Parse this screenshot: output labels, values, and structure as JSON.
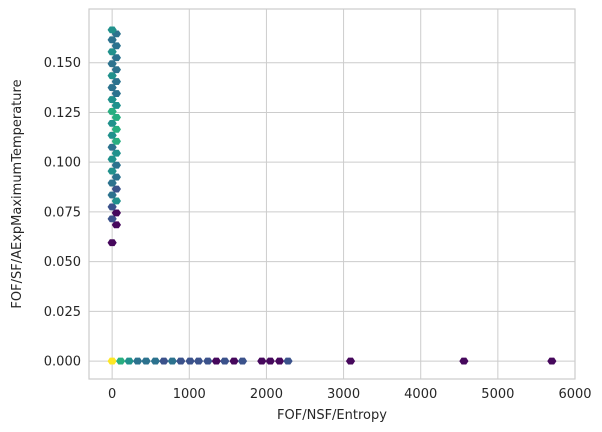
{
  "chart_data": {
    "type": "hexbin",
    "xlabel": "FOF/NSF/Entropy",
    "ylabel": "FOF/SF/AExpMaximumTemperature",
    "xlim": [
      -300,
      6000
    ],
    "ylim": [
      -0.009,
      0.177
    ],
    "xticks": [
      0,
      1000,
      2000,
      3000,
      4000,
      5000,
      6000
    ],
    "yticks": [
      0.0,
      0.025,
      0.05,
      0.075,
      0.1,
      0.125,
      0.15
    ],
    "xtick_labels": [
      "0",
      "1000",
      "2000",
      "3000",
      "4000",
      "5000",
      "6000"
    ],
    "ytick_labels": [
      "0.000",
      "0.025",
      "0.050",
      "0.075",
      "0.100",
      "0.125",
      "0.150"
    ],
    "grid": true,
    "colormap": "viridis",
    "colors": {
      "very_low": "#46085c",
      "low": "#3b528b",
      "mid": "#2c728e",
      "mid_high": "#21918c",
      "high": "#28ae80",
      "max": "#fde725"
    },
    "bins": [
      {
        "x": 0,
        "y": 0.0,
        "level": "max"
      },
      {
        "x": 110,
        "y": 0.0,
        "level": "high"
      },
      {
        "x": 220,
        "y": 0.0,
        "level": "mid_high"
      },
      {
        "x": 330,
        "y": 0.0,
        "level": "mid"
      },
      {
        "x": 440,
        "y": 0.0,
        "level": "mid"
      },
      {
        "x": 560,
        "y": 0.0,
        "level": "mid"
      },
      {
        "x": 670,
        "y": 0.0,
        "level": "low"
      },
      {
        "x": 780,
        "y": 0.0,
        "level": "mid"
      },
      {
        "x": 890,
        "y": 0.0,
        "level": "low"
      },
      {
        "x": 1010,
        "y": 0.0,
        "level": "low"
      },
      {
        "x": 1120,
        "y": 0.0,
        "level": "low"
      },
      {
        "x": 1240,
        "y": 0.0,
        "level": "low"
      },
      {
        "x": 1350,
        "y": 0.0,
        "level": "very_low"
      },
      {
        "x": 1460,
        "y": 0.0,
        "level": "low"
      },
      {
        "x": 1580,
        "y": 0.0,
        "level": "very_low"
      },
      {
        "x": 1690,
        "y": 0.0,
        "level": "low"
      },
      {
        "x": 1940,
        "y": 0.0,
        "level": "very_low"
      },
      {
        "x": 2050,
        "y": 0.0,
        "level": "very_low"
      },
      {
        "x": 2170,
        "y": 0.0,
        "level": "very_low"
      },
      {
        "x": 2280,
        "y": 0.0,
        "level": "low"
      },
      {
        "x": 3090,
        "y": 0.0,
        "level": "very_low"
      },
      {
        "x": 4560,
        "y": 0.0,
        "level": "very_low"
      },
      {
        "x": 5700,
        "y": 0.0,
        "level": "very_low"
      },
      {
        "x": 0,
        "y": 0.0595,
        "level": "very_low"
      },
      {
        "x": 55,
        "y": 0.0685,
        "level": "very_low"
      },
      {
        "x": 0,
        "y": 0.0715,
        "level": "low"
      },
      {
        "x": 55,
        "y": 0.0745,
        "level": "very_low"
      },
      {
        "x": 0,
        "y": 0.0775,
        "level": "low"
      },
      {
        "x": 55,
        "y": 0.0805,
        "level": "mid_high"
      },
      {
        "x": 0,
        "y": 0.0835,
        "level": "mid"
      },
      {
        "x": 55,
        "y": 0.0865,
        "level": "low"
      },
      {
        "x": 0,
        "y": 0.0895,
        "level": "mid"
      },
      {
        "x": 55,
        "y": 0.0925,
        "level": "mid"
      },
      {
        "x": 0,
        "y": 0.0955,
        "level": "mid_high"
      },
      {
        "x": 55,
        "y": 0.0985,
        "level": "mid"
      },
      {
        "x": 0,
        "y": 0.1015,
        "level": "mid_high"
      },
      {
        "x": 55,
        "y": 0.1045,
        "level": "mid_high"
      },
      {
        "x": 0,
        "y": 0.1075,
        "level": "mid"
      },
      {
        "x": 55,
        "y": 0.1105,
        "level": "high"
      },
      {
        "x": 0,
        "y": 0.1135,
        "level": "mid_high"
      },
      {
        "x": 55,
        "y": 0.1165,
        "level": "high"
      },
      {
        "x": 0,
        "y": 0.1195,
        "level": "mid_high"
      },
      {
        "x": 55,
        "y": 0.1225,
        "level": "high"
      },
      {
        "x": 0,
        "y": 0.1255,
        "level": "high"
      },
      {
        "x": 55,
        "y": 0.1285,
        "level": "mid_high"
      },
      {
        "x": 0,
        "y": 0.1315,
        "level": "mid_high"
      },
      {
        "x": 55,
        "y": 0.1345,
        "level": "mid"
      },
      {
        "x": 0,
        "y": 0.1375,
        "level": "mid"
      },
      {
        "x": 55,
        "y": 0.1405,
        "level": "mid"
      },
      {
        "x": 0,
        "y": 0.1435,
        "level": "mid_high"
      },
      {
        "x": 55,
        "y": 0.1465,
        "level": "mid"
      },
      {
        "x": 0,
        "y": 0.1495,
        "level": "mid"
      },
      {
        "x": 55,
        "y": 0.1525,
        "level": "mid"
      },
      {
        "x": 0,
        "y": 0.1555,
        "level": "mid_high"
      },
      {
        "x": 55,
        "y": 0.1585,
        "level": "mid"
      },
      {
        "x": 0,
        "y": 0.1615,
        "level": "mid"
      },
      {
        "x": 55,
        "y": 0.1645,
        "level": "mid"
      },
      {
        "x": 0,
        "y": 0.1665,
        "level": "mid_high"
      }
    ]
  }
}
